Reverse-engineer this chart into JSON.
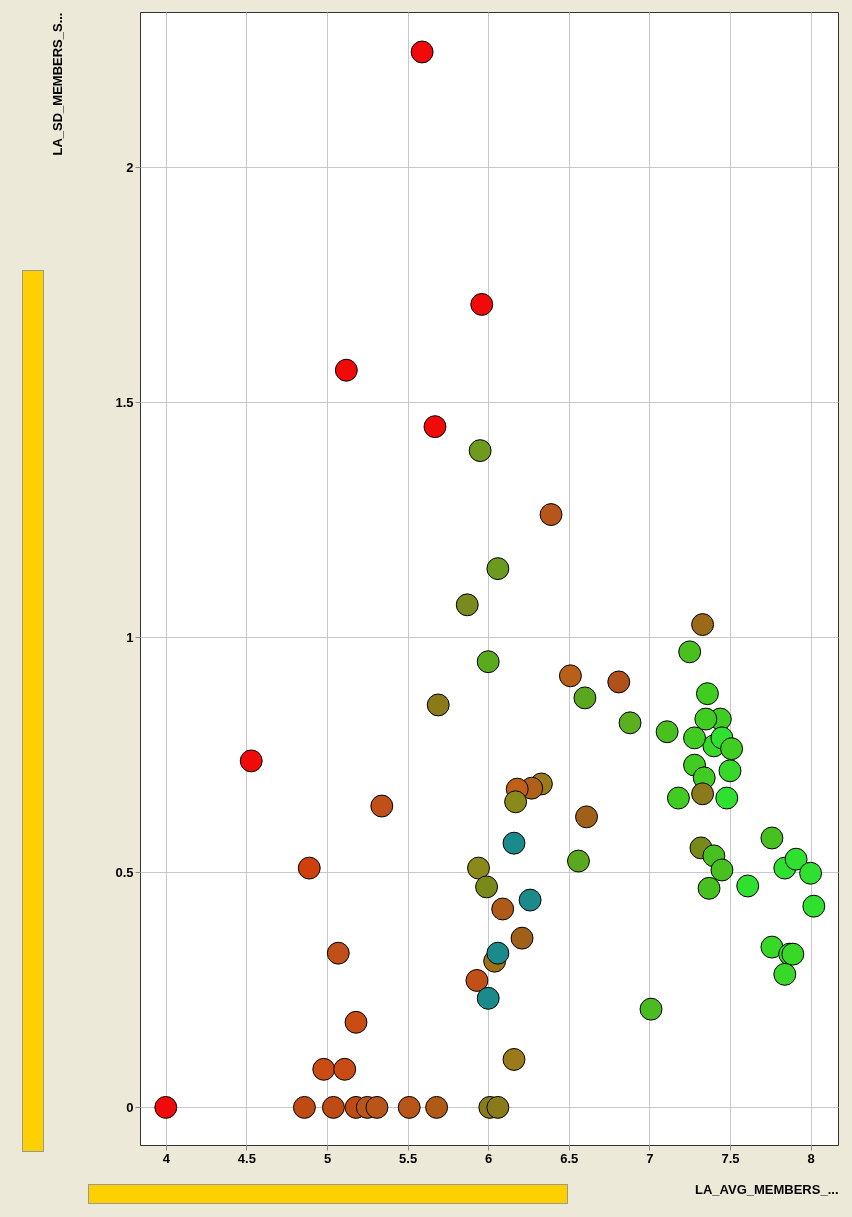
{
  "chart_data": {
    "type": "scatter",
    "xlabel": "LA_AVG_MEMBERS_...",
    "ylabel": "LA_SD_MEMBERS_S...",
    "xlim": [
      3.84,
      8.17
    ],
    "ylim": [
      -0.08,
      2.33
    ],
    "xticks": [
      4,
      4.5,
      5,
      5.5,
      6,
      6.5,
      7,
      7.5,
      8
    ],
    "yticks": [
      0,
      0.5,
      1,
      1.5,
      2
    ],
    "grid": true,
    "marker": "circle",
    "x": [
      5.59,
      5.96,
      5.12,
      5.67,
      5.95,
      6.39,
      6.06,
      5.87,
      7.33,
      6.0,
      7.25,
      6.51,
      6.81,
      6.6,
      5.69,
      6.88,
      7.11,
      7.36,
      7.44,
      7.35,
      7.4,
      7.45,
      7.51,
      7.28,
      7.28,
      7.34,
      7.5,
      7.18,
      7.33,
      7.48,
      4.53,
      5.34,
      6.33,
      6.27,
      6.18,
      6.17,
      6.61,
      4.89,
      5.94,
      5.99,
      6.16,
      6.56,
      6.26,
      6.09,
      6.21,
      6.04,
      6.06,
      5.93,
      6.0,
      5.07,
      5.18,
      4.98,
      5.11,
      6.16,
      7.01,
      4.0,
      4.86,
      5.04,
      5.18,
      5.25,
      5.31,
      5.51,
      5.68,
      6.01,
      6.06,
      7.32,
      7.4,
      7.45,
      7.37,
      7.61,
      7.76,
      7.84,
      7.91,
      8.0,
      8.02,
      7.76,
      7.87,
      7.89,
      7.84
    ],
    "values": [
      2.245,
      1.708,
      1.568,
      1.448,
      1.397,
      1.261,
      1.146,
      1.069,
      1.027,
      0.948,
      0.969,
      0.918,
      0.905,
      0.871,
      0.856,
      0.818,
      0.799,
      0.88,
      0.826,
      0.826,
      0.769,
      0.786,
      0.763,
      0.786,
      0.728,
      0.701,
      0.716,
      0.658,
      0.667,
      0.658,
      0.737,
      0.641,
      0.688,
      0.679,
      0.677,
      0.65,
      0.618,
      0.509,
      0.509,
      0.469,
      0.562,
      0.524,
      0.441,
      0.422,
      0.36,
      0.311,
      0.328,
      0.27,
      0.232,
      0.328,
      0.181,
      0.081,
      0.081,
      0.102,
      0.209,
      0,
      0,
      0,
      0,
      0,
      0,
      0,
      0,
      0,
      0,
      0.552,
      0.535,
      0.505,
      0.466,
      0.471,
      0.573,
      0.509,
      0.528,
      0.498,
      0.428,
      0.341,
      0.326,
      0.326,
      0.283
    ],
    "colors": [
      "#f00a0a",
      "#f00a0a",
      "#f00a0a",
      "#f00a0a",
      "#6e9a1e",
      "#b8561a",
      "#6a9a1e",
      "#7a8a1e",
      "#9a6a1a",
      "#5aaa1e",
      "#4ac01e",
      "#b8601a",
      "#b0501a",
      "#5aa81e",
      "#8a7a1a",
      "#5ab01e",
      "#4ac020",
      "#40cc20",
      "#40cc20",
      "#40cc20",
      "#38d828",
      "#30e030",
      "#40cc20",
      "#40cc20",
      "#40cc20",
      "#40cc20",
      "#38d828",
      "#40cc20",
      "#8a7a1a",
      "#30e030",
      "#f00a0a",
      "#c0501a",
      "#9a7a1a",
      "#b0601a",
      "#c06018",
      "#8a8a1a",
      "#a0601a",
      "#d0400c",
      "#8a8a1a",
      "#7a8a1a",
      "#1a8a8a",
      "#5aa81e",
      "#1a8a8a",
      "#b05a18",
      "#a0601a",
      "#a07018",
      "#1a8a8a",
      "#c05018",
      "#1a8a8a",
      "#c05018",
      "#c84c14",
      "#c84c14",
      "#c84c14",
      "#9a7a1a",
      "#4abb20",
      "#f00a0a",
      "#c04a14",
      "#c04a14",
      "#c04a14",
      "#b8561a",
      "#b8561a",
      "#b8561a",
      "#b05a18",
      "#8a7a1a",
      "#8a7a1a",
      "#7a8a1a",
      "#48c020",
      "#48c020",
      "#48c020",
      "#30e030",
      "#48c020",
      "#30e030",
      "#30e030",
      "#30e030",
      "#30e030",
      "#38d828",
      "#38d828",
      "#38d828",
      "#38d828"
    ]
  }
}
